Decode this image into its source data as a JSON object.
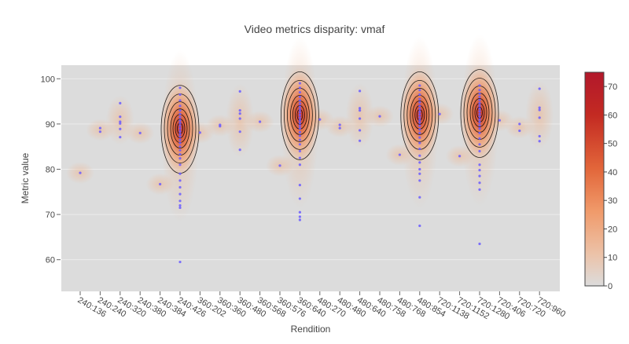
{
  "chart_data": {
    "type": "heatmap",
    "subtype": "2d-density-contour-with-scatter",
    "title": "Video metrics disparity: vmaf",
    "xlabel": "Rendition",
    "ylabel": "Metric value",
    "ylim": [
      53,
      103
    ],
    "yticks": [
      60,
      70,
      80,
      90,
      100
    ],
    "categories": [
      "240:136",
      "240:240",
      "240:320",
      "240:380",
      "240:384",
      "240:426",
      "360:202",
      "360:360",
      "360:480",
      "360:568",
      "360:576",
      "360:640",
      "480:270",
      "480:480",
      "480:640",
      "480:758",
      "480:768",
      "480:854",
      "720:1138",
      "720:1152",
      "720:1280",
      "720:406",
      "720:720",
      "720:960"
    ],
    "points": [
      {
        "x": "240:136",
        "y": [
          79.2
        ]
      },
      {
        "x": "240:240",
        "y": [
          88.3,
          89.1
        ]
      },
      {
        "x": "240:320",
        "y": [
          94.6,
          91.6,
          90.5,
          90.1,
          88.9,
          87.1
        ]
      },
      {
        "x": "240:380",
        "y": [
          88.0
        ]
      },
      {
        "x": "240:384",
        "y": [
          76.7
        ]
      },
      {
        "x": "240:426",
        "y": [
          98.0,
          96.5,
          95.2,
          94.0,
          93.0,
          92.2,
          91.5,
          90.8,
          90.2,
          89.6,
          89.0,
          88.4,
          87.8,
          87.2,
          86.5,
          85.8,
          85.0,
          84.2,
          83.3,
          82.4,
          81.0,
          79.0,
          77.5,
          76.0,
          74.5,
          73.0,
          72.0,
          71.5,
          59.5
        ]
      },
      {
        "x": "360:202",
        "y": [
          88.1
        ]
      },
      {
        "x": "360:360",
        "y": [
          89.8,
          89.5
        ]
      },
      {
        "x": "360:480",
        "y": [
          97.2,
          93.0,
          92.3,
          91.2,
          88.3,
          84.3
        ]
      },
      {
        "x": "360:568",
        "y": [
          90.5
        ]
      },
      {
        "x": "360:576",
        "y": [
          80.8
        ]
      },
      {
        "x": "360:640",
        "y": [
          99.0,
          98.0,
          97.0,
          96.0,
          95.2,
          94.5,
          93.8,
          93.2,
          92.6,
          92.0,
          91.4,
          90.8,
          90.2,
          89.6,
          89.0,
          88.2,
          87.4,
          86.5,
          85.5,
          84.0,
          82.5,
          81.0,
          76.5,
          73.5,
          70.5,
          69.5,
          68.8
        ]
      },
      {
        "x": "480:270",
        "y": [
          91.0
        ]
      },
      {
        "x": "480:480",
        "y": [
          89.8,
          89.1
        ]
      },
      {
        "x": "480:640",
        "y": [
          97.3,
          93.5,
          93.0,
          91.2,
          88.6,
          86.3
        ]
      },
      {
        "x": "480:758",
        "y": [
          91.7
        ]
      },
      {
        "x": "480:768",
        "y": [
          83.2
        ]
      },
      {
        "x": "480:854",
        "y": [
          98.5,
          97.5,
          96.5,
          95.5,
          94.8,
          94.0,
          93.3,
          92.7,
          92.1,
          91.5,
          90.9,
          90.3,
          89.6,
          88.8,
          88.0,
          87.0,
          85.8,
          84.5,
          83.0,
          81.5,
          80.0,
          79.0,
          77.5,
          73.8,
          67.5
        ]
      },
      {
        "x": "720:1138",
        "y": [
          92.2
        ]
      },
      {
        "x": "720:1152",
        "y": [
          82.9
        ]
      },
      {
        "x": "720:1280",
        "y": [
          98.5,
          97.5,
          96.7,
          96.0,
          95.3,
          94.6,
          94.0,
          93.4,
          92.8,
          92.2,
          91.6,
          91.0,
          90.4,
          89.7,
          89.0,
          88.0,
          86.8,
          85.5,
          84.0,
          81.0,
          79.8,
          78.5,
          77.0,
          75.5,
          63.5
        ]
      },
      {
        "x": "720:406",
        "y": [
          90.8
        ]
      },
      {
        "x": "720:720",
        "y": [
          90.0,
          88.5
        ]
      },
      {
        "x": "720:960",
        "y": [
          97.8,
          93.6,
          93.1,
          91.4,
          87.3,
          86.2
        ]
      }
    ],
    "density_peaks": [
      {
        "x": "240:426",
        "y": 89.0,
        "level": 60
      },
      {
        "x": "360:640",
        "y": 92.0,
        "level": 70
      },
      {
        "x": "480:854",
        "y": 92.0,
        "level": 70
      },
      {
        "x": "720:1280",
        "y": 92.5,
        "level": 75
      }
    ],
    "colorbar": {
      "min": 0,
      "max": 75,
      "ticks": [
        0,
        10,
        20,
        30,
        40,
        50,
        60,
        70
      ],
      "colors": [
        "#dcdcdc",
        "#ecc2a8",
        "#f09a6a",
        "#e2663a",
        "#c32a22",
        "#b2182b"
      ]
    },
    "marker_color": "#6a5cff",
    "contour_color": "#000000",
    "plot_bg": "#dcdcdc",
    "grid": true,
    "legend": "none"
  }
}
